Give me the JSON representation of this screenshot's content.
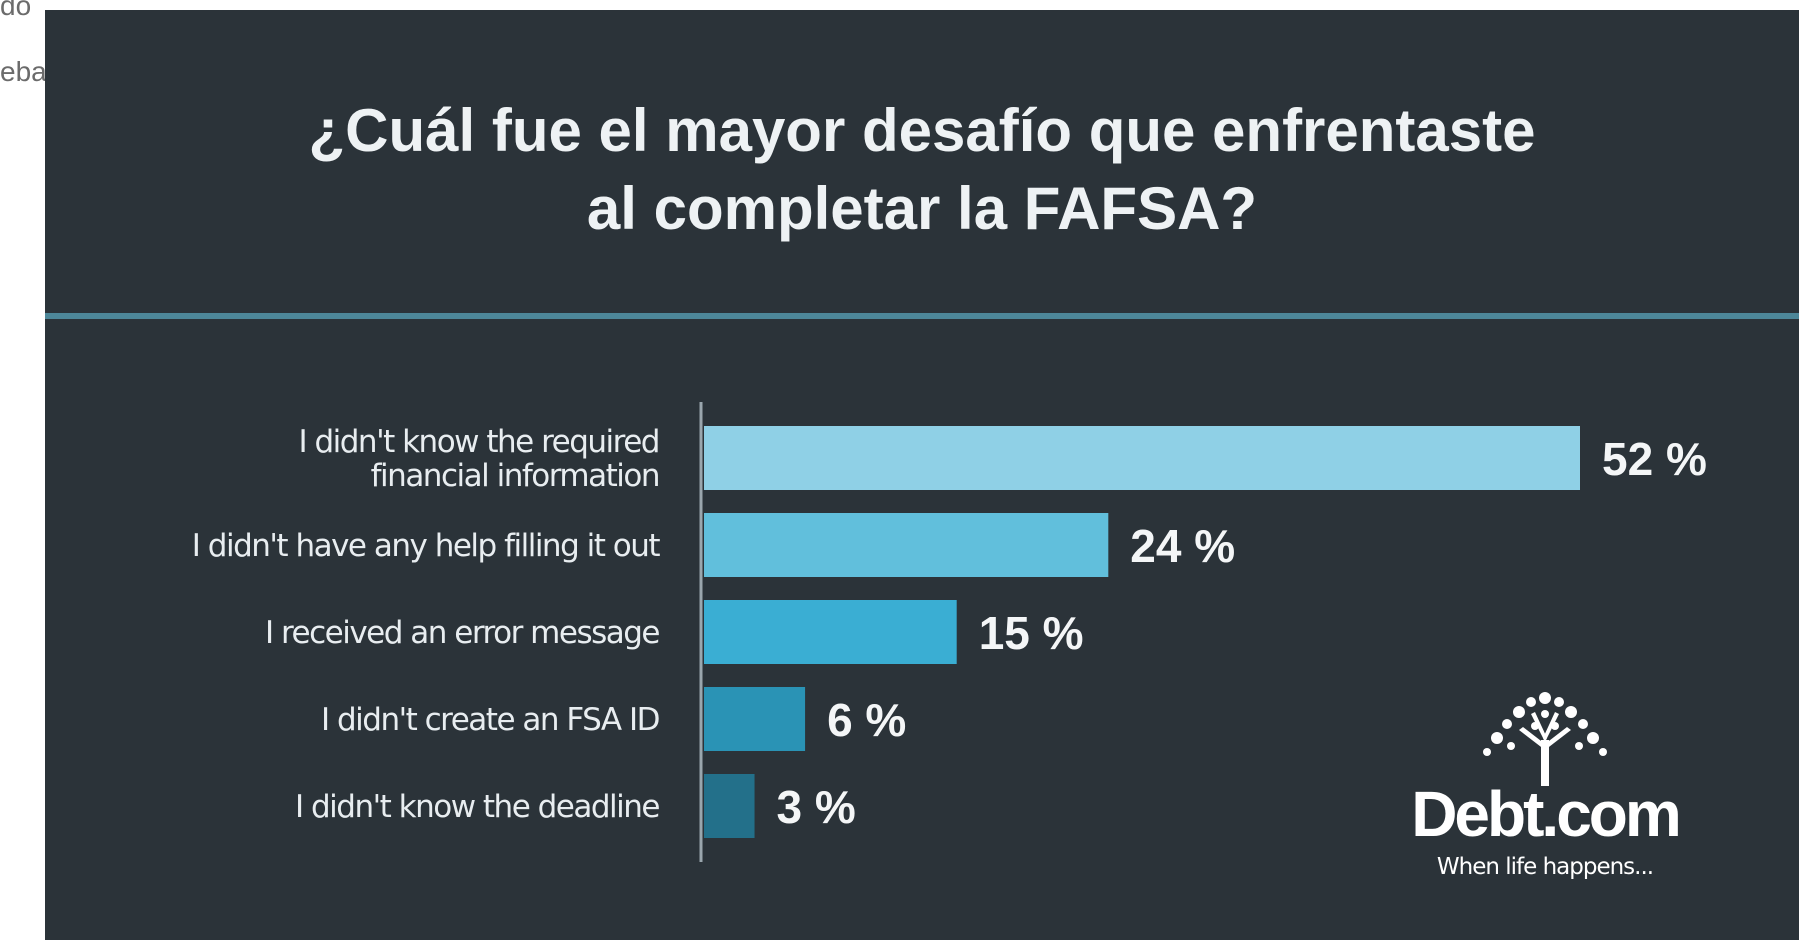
{
  "background_text": [
    "do",
    "eba"
  ],
  "chart_data": {
    "type": "bar",
    "orientation": "horizontal",
    "title": [
      "¿Cuál fue el mayor desafío que enfrentaste",
      "al completar la FAFSA?"
    ],
    "categories": [
      [
        "I didn't know the required",
        "financial information"
      ],
      [
        "I didn't have any help filling it out"
      ],
      [
        "I received an error message"
      ],
      [
        "I didn't create an FSA ID"
      ],
      [
        "I didn't know the deadline"
      ]
    ],
    "values": [
      52,
      24,
      15,
      6,
      3
    ],
    "value_labels": [
      "52 %",
      "24 %",
      "15 %",
      "6 %",
      "3 %"
    ],
    "xlim": [
      0,
      52
    ],
    "grid": false,
    "legend": "none",
    "bar_colors": [
      "#8fd0e6",
      "#61bfdc",
      "#3aaed3",
      "#2a93b5",
      "#23708a"
    ]
  },
  "colors": {
    "panel_bg": "#2b3339",
    "divider": "#4d8799",
    "axis_line": "#9aa6ad",
    "text": "#eef2f4"
  },
  "logo": {
    "name": "Debt.com",
    "tagline": "When life happens...",
    "icon": "tree-icon"
  }
}
